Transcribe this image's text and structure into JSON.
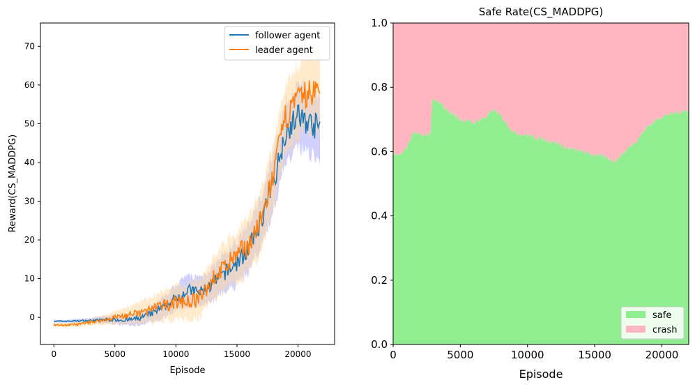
{
  "chart_data": [
    {
      "type": "line",
      "title": "",
      "xlabel": "Episode",
      "ylabel": "Reward(CS_MADDPG)",
      "xlim": [
        -1100,
        23000
      ],
      "ylim": [
        -7,
        76
      ],
      "x_ticks": [
        0,
        5000,
        10000,
        15000,
        20000
      ],
      "y_ticks": [
        0,
        10,
        20,
        30,
        40,
        50,
        60,
        70
      ],
      "legend_position": "top-right",
      "series": [
        {
          "name": "follower agent",
          "color": "#1f77b4",
          "band_color": "#a9a9ff",
          "x": [
            0,
            1000,
            2000,
            3000,
            4000,
            5000,
            6000,
            7000,
            8000,
            9000,
            10000,
            11000,
            12000,
            13000,
            14000,
            15000,
            16000,
            17000,
            18000,
            19000,
            20000,
            21000,
            21800
          ],
          "y": [
            -1.0,
            -1.0,
            -0.9,
            -0.8,
            -0.6,
            -0.6,
            -0.7,
            -0.3,
            1.0,
            2.5,
            5.0,
            7.0,
            6.5,
            8.5,
            11.5,
            14.0,
            18.0,
            25.0,
            35.0,
            48.0,
            52.0,
            50.0,
            49.0
          ],
          "band": [
            0.3,
            0.3,
            0.4,
            0.5,
            0.8,
            1.0,
            1.2,
            1.5,
            2.0,
            2.5,
            3.0,
            3.5,
            3.5,
            4.0,
            4.5,
            5.0,
            5.5,
            6.0,
            6.5,
            7.0,
            7.5,
            7.5,
            7.5
          ]
        },
        {
          "name": "leader agent",
          "color": "#ff7f0e",
          "band_color": "#ffd8a0",
          "x": [
            0,
            1000,
            2000,
            3000,
            4000,
            5000,
            6000,
            7000,
            8000,
            9000,
            10000,
            11000,
            12000,
            13000,
            14000,
            15000,
            16000,
            17000,
            18000,
            19000,
            20000,
            21000,
            21800
          ],
          "y": [
            -2.0,
            -2.0,
            -1.8,
            -1.2,
            -0.8,
            0.0,
            0.5,
            1.0,
            2.0,
            3.0,
            4.0,
            4.0,
            5.0,
            10.0,
            13.0,
            16.0,
            19.0,
            25.0,
            37.0,
            52.0,
            56.0,
            58.0,
            58.5
          ],
          "band": [
            0.5,
            0.5,
            0.6,
            0.8,
            1.0,
            1.5,
            2.0,
            2.5,
            3.0,
            3.5,
            4.0,
            4.0,
            4.5,
            5.0,
            5.5,
            6.0,
            6.5,
            7.0,
            7.5,
            8.0,
            8.5,
            9.0,
            9.0
          ]
        }
      ]
    },
    {
      "type": "area",
      "title": "Safe Rate(CS_MADDPG)",
      "xlabel": "Episode",
      "ylabel": "",
      "xlim": [
        0,
        22000
      ],
      "ylim": [
        0,
        1.0
      ],
      "x_ticks": [
        0,
        5000,
        10000,
        15000,
        20000
      ],
      "y_ticks": [
        0.0,
        0.2,
        0.4,
        0.6,
        0.8,
        1.0
      ],
      "legend_position": "bottom-right",
      "x": [
        0,
        500,
        1000,
        1500,
        2000,
        2500,
        2800,
        2900,
        3500,
        4000,
        5000,
        6000,
        7000,
        7500,
        8000,
        9000,
        10000,
        11000,
        12000,
        13000,
        14000,
        15000,
        16000,
        16500,
        17000,
        18000,
        19000,
        20000,
        21000,
        22000
      ],
      "series": [
        {
          "name": "safe",
          "color": "#90ee90",
          "values": [
            0.6,
            0.59,
            0.61,
            0.66,
            0.65,
            0.65,
            0.66,
            0.76,
            0.75,
            0.73,
            0.7,
            0.69,
            0.71,
            0.73,
            0.71,
            0.66,
            0.65,
            0.64,
            0.63,
            0.61,
            0.6,
            0.59,
            0.58,
            0.57,
            0.59,
            0.63,
            0.68,
            0.71,
            0.72,
            0.73
          ]
        },
        {
          "name": "crash",
          "color": "#ffb6c1",
          "values": [
            0.4,
            0.41,
            0.39,
            0.34,
            0.35,
            0.35,
            0.34,
            0.24,
            0.25,
            0.27,
            0.3,
            0.31,
            0.29,
            0.27,
            0.29,
            0.34,
            0.35,
            0.36,
            0.37,
            0.39,
            0.4,
            0.41,
            0.42,
            0.43,
            0.41,
            0.37,
            0.32,
            0.29,
            0.28,
            0.27
          ]
        }
      ]
    }
  ]
}
